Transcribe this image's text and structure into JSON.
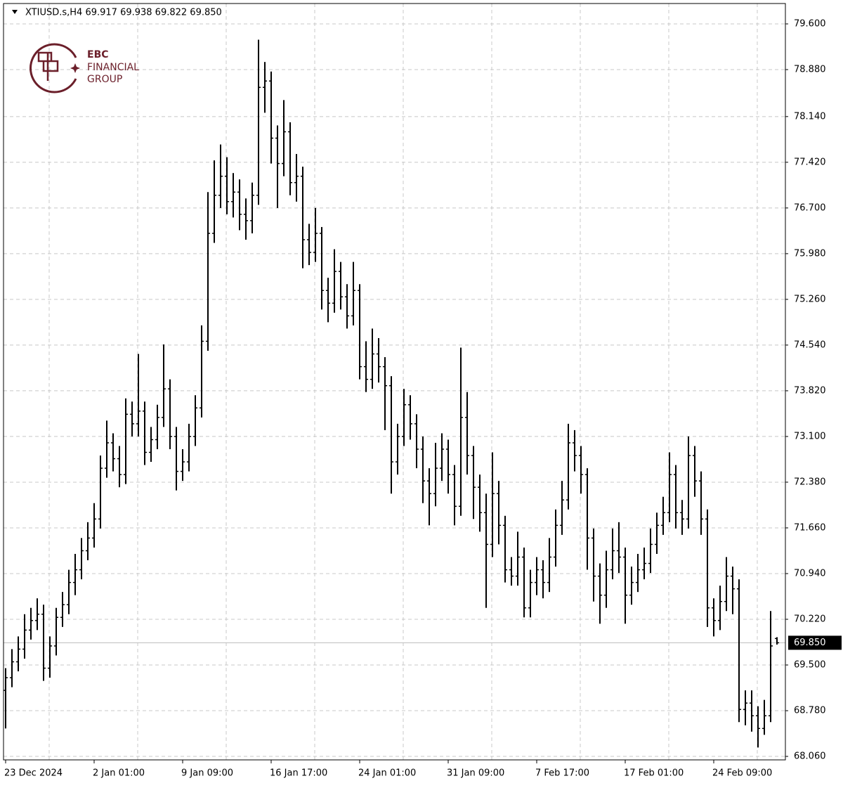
{
  "chart_data": {
    "type": "ohlc",
    "title": "XTIUSD.s,H4  69.917 69.938 69.822 69.850",
    "watermark": [
      "EBC",
      "FINANCIAL",
      "GROUP"
    ],
    "color": "#000000",
    "grid": true,
    "categories": [
      "23 Dec 2024",
      null,
      null,
      null,
      null,
      null,
      null,
      null,
      null,
      null,
      null,
      null,
      null,
      null,
      "2 Jan 01:00",
      null,
      null,
      null,
      null,
      null,
      null,
      null,
      null,
      null,
      null,
      null,
      null,
      null,
      "9 Jan 09:00",
      null,
      null,
      null,
      null,
      null,
      null,
      null,
      null,
      null,
      null,
      null,
      null,
      null,
      "16 Jan 17:00",
      null,
      null,
      null,
      null,
      null,
      null,
      null,
      null,
      null,
      null,
      null,
      null,
      null,
      "24 Jan 01:00",
      null,
      null,
      null,
      null,
      null,
      null,
      null,
      null,
      null,
      null,
      null,
      null,
      null,
      "31 Jan 09:00",
      null,
      null,
      null,
      null,
      null,
      null,
      null,
      null,
      null,
      null,
      null,
      null,
      null,
      "7 Feb 17:00",
      null,
      null,
      null,
      null,
      null,
      null,
      null,
      null,
      null,
      null,
      null,
      null,
      null,
      "17 Feb 01:00",
      null,
      null,
      null,
      null,
      null,
      null,
      null,
      null,
      null,
      null,
      null,
      null,
      null,
      "24 Feb 09:00",
      null,
      null,
      null,
      null,
      null,
      null,
      null,
      null,
      null,
      null
    ],
    "open": [
      69.1,
      69.3,
      69.55,
      69.75,
      70.05,
      70.2,
      70.3,
      69.45,
      69.8,
      70.25,
      70.45,
      70.8,
      71.0,
      71.3,
      71.5,
      71.8,
      72.6,
      73.0,
      72.75,
      72.5,
      73.45,
      73.3,
      73.5,
      72.85,
      73.05,
      73.4,
      73.85,
      73.1,
      72.55,
      72.7,
      73.1,
      73.55,
      74.6,
      76.3,
      76.9,
      77.2,
      76.8,
      76.95,
      76.6,
      76.5,
      76.9,
      78.6,
      78.7,
      77.8,
      77.4,
      77.9,
      77.1,
      77.2,
      76.2,
      76.0,
      76.3,
      75.4,
      75.2,
      75.7,
      75.3,
      75.0,
      75.4,
      74.2,
      74.0,
      74.4,
      74.2,
      73.9,
      72.7,
      73.1,
      73.6,
      73.3,
      72.9,
      72.4,
      72.2,
      72.6,
      72.9,
      72.5,
      72.0,
      73.4,
      72.8,
      72.3,
      71.9,
      71.4,
      72.2,
      71.7,
      71.0,
      70.9,
      71.2,
      70.4,
      70.8,
      71.0,
      70.8,
      71.2,
      71.7,
      72.1,
      73.0,
      72.8,
      72.5,
      71.5,
      70.9,
      70.6,
      71.0,
      71.3,
      71.2,
      70.6,
      70.8,
      71.0,
      71.1,
      71.4,
      71.7,
      71.9,
      72.5,
      71.9,
      71.8,
      72.8,
      72.4,
      71.8,
      70.4,
      70.2,
      70.5,
      70.9,
      70.7,
      68.8,
      68.9,
      68.7,
      68.5,
      68.7,
      69.917
    ],
    "high": [
      69.45,
      69.75,
      69.95,
      70.3,
      70.4,
      70.55,
      70.45,
      69.95,
      70.4,
      70.65,
      71.0,
      71.25,
      71.5,
      71.75,
      72.05,
      72.8,
      73.35,
      73.15,
      72.95,
      73.7,
      73.65,
      74.4,
      73.65,
      73.25,
      73.6,
      74.55,
      74.0,
      73.25,
      72.9,
      73.3,
      73.75,
      74.85,
      76.95,
      77.45,
      77.7,
      77.5,
      77.25,
      77.15,
      76.85,
      77.1,
      79.35,
      79.0,
      78.85,
      78.0,
      78.4,
      78.05,
      77.55,
      77.35,
      76.45,
      76.7,
      76.4,
      75.6,
      76.05,
      75.85,
      75.5,
      75.85,
      75.5,
      74.6,
      74.8,
      74.65,
      74.35,
      74.05,
      73.3,
      73.85,
      73.75,
      73.45,
      73.1,
      72.6,
      73.0,
      73.15,
      73.05,
      72.65,
      74.5,
      73.8,
      72.95,
      72.5,
      72.2,
      72.85,
      72.4,
      71.85,
      71.2,
      71.6,
      71.35,
      71.0,
      71.2,
      71.15,
      71.5,
      71.95,
      72.4,
      73.3,
      73.2,
      72.95,
      72.6,
      71.65,
      71.1,
      71.3,
      71.65,
      71.75,
      71.35,
      71.05,
      71.25,
      71.35,
      71.65,
      71.9,
      72.15,
      72.85,
      72.65,
      72.1,
      73.1,
      72.95,
      72.55,
      71.95,
      70.55,
      70.75,
      71.2,
      71.05,
      70.85,
      69.1,
      69.1,
      68.85,
      68.95,
      70.35,
      69.938
    ],
    "low": [
      68.5,
      69.15,
      69.4,
      69.6,
      69.9,
      70.05,
      69.25,
      69.3,
      69.65,
      70.1,
      70.3,
      70.6,
      70.85,
      71.15,
      71.35,
      71.65,
      72.45,
      72.55,
      72.3,
      72.35,
      73.1,
      73.1,
      72.65,
      72.7,
      72.9,
      73.25,
      72.9,
      72.25,
      72.4,
      72.55,
      72.95,
      73.4,
      74.45,
      76.15,
      76.7,
      76.6,
      76.55,
      76.35,
      76.2,
      76.3,
      76.75,
      78.2,
      77.4,
      76.7,
      77.2,
      76.9,
      76.8,
      75.75,
      75.8,
      75.85,
      75.1,
      74.9,
      75.05,
      75.1,
      74.8,
      74.85,
      74.0,
      73.8,
      73.85,
      73.95,
      73.2,
      72.2,
      72.5,
      72.95,
      73.05,
      72.6,
      72.05,
      71.7,
      72.0,
      72.4,
      72.2,
      71.7,
      71.85,
      72.5,
      71.8,
      71.6,
      70.4,
      71.2,
      71.4,
      70.8,
      70.75,
      70.75,
      70.25,
      70.25,
      70.6,
      70.55,
      70.65,
      71.05,
      71.55,
      71.95,
      72.55,
      72.2,
      71.0,
      70.5,
      70.15,
      70.4,
      70.85,
      70.95,
      70.15,
      70.45,
      70.65,
      70.85,
      70.95,
      71.25,
      71.55,
      71.75,
      71.65,
      71.55,
      71.65,
      72.15,
      71.55,
      70.1,
      69.95,
      70.05,
      70.35,
      70.3,
      68.6,
      68.55,
      68.45,
      68.2,
      68.4,
      68.6,
      69.822
    ],
    "close": [
      69.3,
      69.55,
      69.75,
      70.05,
      70.2,
      70.3,
      69.45,
      69.8,
      70.25,
      70.45,
      70.8,
      71.0,
      71.3,
      71.5,
      71.8,
      72.6,
      73.0,
      72.75,
      72.5,
      73.45,
      73.3,
      73.5,
      72.85,
      73.05,
      73.4,
      73.85,
      73.1,
      72.55,
      72.7,
      73.1,
      73.55,
      74.6,
      76.3,
      76.9,
      77.2,
      76.8,
      76.95,
      76.6,
      76.5,
      76.9,
      78.6,
      78.7,
      77.8,
      77.4,
      77.9,
      77.1,
      77.2,
      76.2,
      76.0,
      76.3,
      75.4,
      75.2,
      75.7,
      75.3,
      75.0,
      75.4,
      74.2,
      74.0,
      74.4,
      74.2,
      73.9,
      72.7,
      73.1,
      73.6,
      73.3,
      72.9,
      72.4,
      72.2,
      72.6,
      72.9,
      72.5,
      72.0,
      73.4,
      72.8,
      72.3,
      71.9,
      71.4,
      72.2,
      71.7,
      71.0,
      70.9,
      71.2,
      70.4,
      70.8,
      71.0,
      70.8,
      71.2,
      71.7,
      72.1,
      73.0,
      72.8,
      72.5,
      71.5,
      70.9,
      70.6,
      71.0,
      71.3,
      71.2,
      70.6,
      70.8,
      71.0,
      71.1,
      71.4,
      71.7,
      71.9,
      72.5,
      71.9,
      71.8,
      72.8,
      72.4,
      71.8,
      70.4,
      70.2,
      70.5,
      70.9,
      70.7,
      68.8,
      68.9,
      68.7,
      68.5,
      68.7,
      69.8,
      69.85
    ],
    "current_price": {
      "value": 69.85,
      "label": "69.850"
    },
    "ylim": [
      68.005,
      79.921
    ],
    "yticks": [
      {
        "value": 79.6,
        "label": "79.600"
      },
      {
        "value": 78.88,
        "label": "78.880"
      },
      {
        "value": 78.14,
        "label": "78.140"
      },
      {
        "value": 77.42,
        "label": "77.420"
      },
      {
        "value": 76.7,
        "label": "76.700"
      },
      {
        "value": 75.98,
        "label": "75.980"
      },
      {
        "value": 75.26,
        "label": "75.260"
      },
      {
        "value": 74.54,
        "label": "74.540"
      },
      {
        "value": 73.82,
        "label": "73.820"
      },
      {
        "value": 73.1,
        "label": "73.100"
      },
      {
        "value": 72.38,
        "label": "72.380"
      },
      {
        "value": 71.66,
        "label": "71.660"
      },
      {
        "value": 70.94,
        "label": "70.940"
      },
      {
        "value": 70.22,
        "label": "70.220"
      },
      {
        "value": 69.5,
        "label": "69.500"
      },
      {
        "value": 68.78,
        "label": "68.780"
      },
      {
        "value": 68.06,
        "label": "68.060"
      }
    ]
  }
}
